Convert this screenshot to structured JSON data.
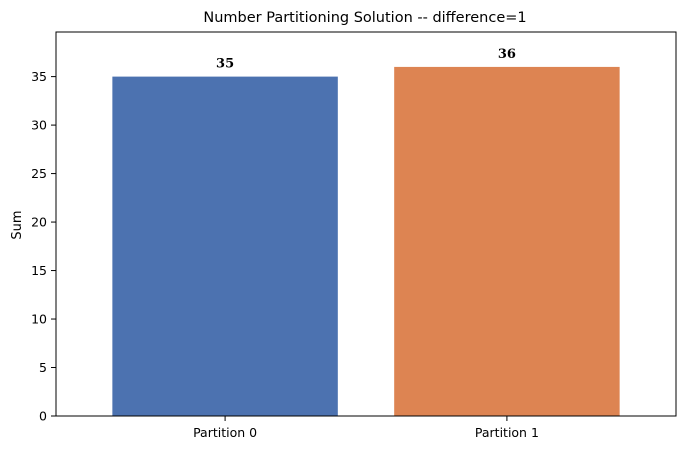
{
  "chart_data": {
    "type": "bar",
    "title": "Number Partitioning Solution -- difference=1",
    "xlabel": "",
    "ylabel": "Sum",
    "categories": [
      "Partition 0",
      "Partition 1"
    ],
    "values": [
      35,
      36
    ],
    "data_labels": [
      "35",
      "36"
    ],
    "colors": [
      "#4c72b0",
      "#dd8452"
    ],
    "ylim": [
      0,
      39.6
    ],
    "yticks": [
      0,
      5,
      10,
      15,
      20,
      25,
      30,
      35
    ],
    "grid": false,
    "legend": "none"
  }
}
